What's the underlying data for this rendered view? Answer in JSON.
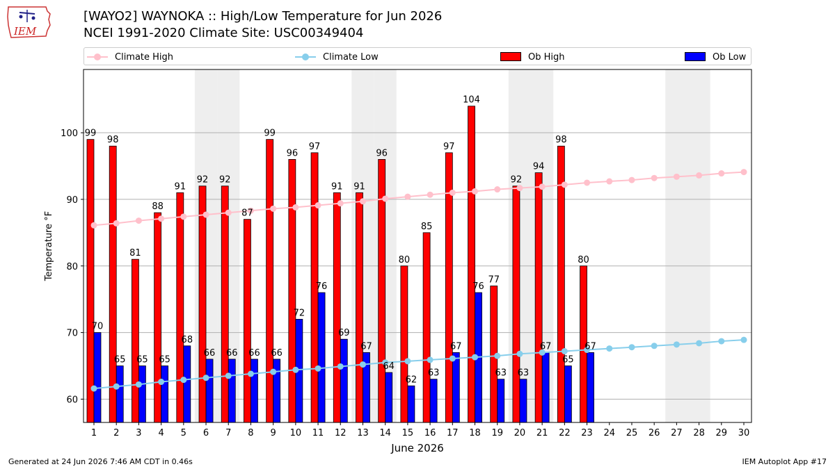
{
  "logo": {
    "text": "IEM",
    "icon": "iowa-state-outline-icon"
  },
  "title": {
    "line1": "[WAYO2] WAYNOKA :: High/Low Temperature for Jun 2026",
    "line2": "NCEI 1991-2020 Climate Site: USC00349404"
  },
  "legend": {
    "climate_high": "Climate High",
    "climate_low": "Climate Low",
    "ob_high": "Ob High",
    "ob_low": "Ob Low"
  },
  "colors": {
    "climate_high": "#ffc0cb",
    "climate_low": "#87ceeb",
    "ob_high": "#ff0000",
    "ob_low": "#0000ff",
    "weekend_shade": "#eeeeee",
    "grid": "#b0b0b0"
  },
  "chart_data": {
    "type": "bar",
    "xlabel": "June 2026",
    "ylabel": "Temperature °F",
    "ylim": [
      56.5,
      109.5
    ],
    "yticks": [
      60,
      70,
      80,
      90,
      100
    ],
    "grid": "horizontal",
    "legend_position": "top",
    "categories": [
      "1",
      "2",
      "3",
      "4",
      "5",
      "6",
      "7",
      "8",
      "9",
      "10",
      "11",
      "12",
      "13",
      "14",
      "15",
      "16",
      "17",
      "18",
      "19",
      "20",
      "21",
      "22",
      "23",
      "24",
      "25",
      "26",
      "27",
      "28",
      "29",
      "30"
    ],
    "shaded_days": [
      "6",
      "7",
      "13",
      "14",
      "20",
      "21",
      "27",
      "28"
    ],
    "series": [
      {
        "name": "Ob High",
        "kind": "bar",
        "values": [
          99,
          98,
          81,
          88,
          91,
          92,
          92,
          87,
          99,
          96,
          97,
          91,
          91,
          96,
          80,
          85,
          97,
          104,
          77,
          92,
          94,
          98,
          80,
          null,
          null,
          null,
          null,
          null,
          null,
          null
        ]
      },
      {
        "name": "Ob Low",
        "kind": "bar",
        "values": [
          70,
          65,
          65,
          65,
          68,
          66,
          66,
          66,
          66,
          72,
          76,
          69,
          67,
          64,
          62,
          63,
          67,
          76,
          63,
          63,
          67,
          65,
          67,
          null,
          null,
          null,
          null,
          null,
          null,
          null
        ]
      },
      {
        "name": "Climate High",
        "kind": "line",
        "values": [
          86.1,
          86.4,
          86.8,
          87.1,
          87.4,
          87.7,
          88.0,
          88.3,
          88.6,
          88.8,
          89.1,
          89.4,
          89.7,
          90.1,
          90.4,
          90.7,
          91.0,
          91.2,
          91.5,
          91.7,
          91.9,
          92.2,
          92.5,
          92.7,
          92.9,
          93.2,
          93.4,
          93.6,
          93.9,
          94.1
        ]
      },
      {
        "name": "Climate Low",
        "kind": "line",
        "values": [
          61.6,
          61.9,
          62.2,
          62.6,
          62.9,
          63.2,
          63.5,
          63.8,
          64.1,
          64.4,
          64.6,
          64.9,
          65.2,
          65.5,
          65.7,
          65.9,
          66.1,
          66.3,
          66.5,
          66.8,
          67.0,
          67.2,
          67.4,
          67.6,
          67.8,
          68.0,
          68.2,
          68.4,
          68.7,
          68.9
        ]
      }
    ]
  },
  "footer": {
    "left": "Generated at 24 Jun 2026 7:46 AM CDT in 0.46s",
    "right": "IEM Autoplot App #17"
  }
}
